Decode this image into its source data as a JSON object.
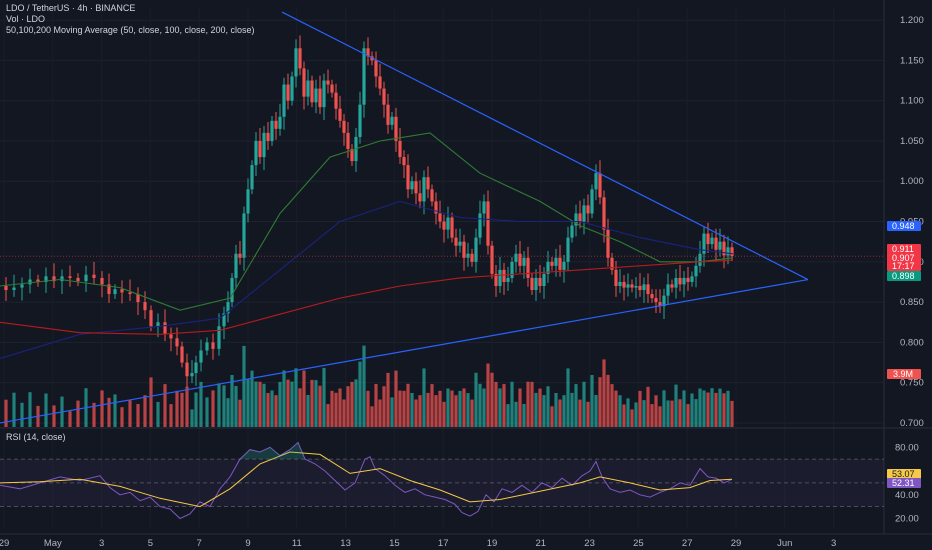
{
  "header": {
    "title": "LDO / TetherUS · 4h · BINANCE",
    "volume_label": "Vol · LDO",
    "ma_label": "50,100,200 Moving Average (50, close, 100, close, 200, close)",
    "rsi_label": "RSI (14, close)"
  },
  "chart_data": [
    {
      "type": "candlestick",
      "title": "LDO / TetherUS · 4h · BINANCE",
      "x_ticks": [
        "29",
        "May",
        "3",
        "5",
        "7",
        "9",
        "11",
        "13",
        "15",
        "17",
        "19",
        "21",
        "23",
        "25",
        "27",
        "29",
        "Jun",
        "3"
      ],
      "y_ticks": [
        "1.200",
        "1.150",
        "1.100",
        "1.050",
        "1.000",
        "0.950",
        "0.900",
        "0.850",
        "0.800",
        "0.750",
        "0.700"
      ],
      "ylim": [
        0.695,
        1.215
      ],
      "grid": true,
      "price_tags": [
        {
          "label": "0.948",
          "color": "#2962ff"
        },
        {
          "label": "0.911",
          "color": "#f23645"
        },
        {
          "label": "0.907",
          "color": "#f23645"
        },
        {
          "label": "17:17",
          "color": "#f23645"
        },
        {
          "label": "0.898",
          "color": "#089981"
        }
      ],
      "close_path": [
        [
          0,
          0.87
        ],
        [
          8,
          0.865
        ],
        [
          16,
          0.868
        ],
        [
          24,
          0.872
        ],
        [
          32,
          0.878
        ],
        [
          40,
          0.875
        ],
        [
          48,
          0.882
        ],
        [
          56,
          0.876
        ],
        [
          64,
          0.882
        ],
        [
          72,
          0.88
        ],
        [
          80,
          0.876
        ],
        [
          88,
          0.884
        ],
        [
          96,
          0.88
        ],
        [
          104,
          0.872
        ],
        [
          110,
          0.86
        ],
        [
          116,
          0.866
        ],
        [
          124,
          0.862
        ],
        [
          132,
          0.86
        ],
        [
          140,
          0.85
        ],
        [
          146,
          0.84
        ],
        [
          152,
          0.82
        ],
        [
          160,
          0.825
        ],
        [
          166,
          0.81
        ],
        [
          172,
          0.805
        ],
        [
          178,
          0.795
        ],
        [
          182,
          0.775
        ],
        [
          188,
          0.758
        ],
        [
          192,
          0.762
        ],
        [
          196,
          0.775
        ],
        [
          202,
          0.79
        ],
        [
          208,
          0.8
        ],
        [
          214,
          0.792
        ],
        [
          220,
          0.82
        ],
        [
          224,
          0.836
        ],
        [
          228,
          0.85
        ],
        [
          232,
          0.88
        ],
        [
          236,
          0.91
        ],
        [
          240,
          0.905
        ],
        [
          244,
          0.96
        ],
        [
          248,
          0.99
        ],
        [
          252,
          1.02
        ],
        [
          256,
          1.05
        ],
        [
          260,
          1.03
        ],
        [
          264,
          1.06
        ],
        [
          268,
          1.05
        ],
        [
          272,
          1.075
        ],
        [
          276,
          1.065
        ],
        [
          280,
          1.08
        ],
        [
          284,
          1.12
        ],
        [
          288,
          1.1
        ],
        [
          292,
          1.13
        ],
        [
          296,
          1.165
        ],
        [
          300,
          1.14
        ],
        [
          304,
          1.105
        ],
        [
          308,
          1.125
        ],
        [
          312,
          1.098
        ],
        [
          316,
          1.115
        ],
        [
          320,
          1.092
        ],
        [
          324,
          1.125
        ],
        [
          328,
          1.12
        ],
        [
          332,
          1.11
        ],
        [
          336,
          1.09
        ],
        [
          340,
          1.075
        ],
        [
          344,
          1.06
        ],
        [
          348,
          1.04
        ],
        [
          352,
          1.025
        ],
        [
          356,
          1.055
        ],
        [
          360,
          1.095
        ],
        [
          364,
          1.165
        ],
        [
          368,
          1.155
        ],
        [
          372,
          1.15
        ],
        [
          376,
          1.13
        ],
        [
          380,
          1.115
        ],
        [
          384,
          1.095
        ],
        [
          388,
          1.07
        ],
        [
          392,
          1.08
        ],
        [
          396,
          1.05
        ],
        [
          400,
          1.03
        ],
        [
          404,
          1.02
        ],
        [
          408,
          0.99
        ],
        [
          412,
          1.0
        ],
        [
          416,
          0.985
        ],
        [
          420,
          0.975
        ],
        [
          424,
          1.005
        ],
        [
          428,
          0.99
        ],
        [
          432,
          0.975
        ],
        [
          436,
          0.96
        ],
        [
          440,
          0.95
        ],
        [
          444,
          0.94
        ],
        [
          448,
          0.955
        ],
        [
          452,
          0.93
        ],
        [
          456,
          0.92
        ],
        [
          460,
          0.925
        ],
        [
          464,
          0.905
        ],
        [
          468,
          0.91
        ],
        [
          472,
          0.9
        ],
        [
          476,
          0.93
        ],
        [
          480,
          0.96
        ],
        [
          484,
          0.975
        ],
        [
          488,
          0.92
        ],
        [
          492,
          0.885
        ],
        [
          496,
          0.87
        ],
        [
          500,
          0.89
        ],
        [
          504,
          0.875
        ],
        [
          508,
          0.88
        ],
        [
          512,
          0.9
        ],
        [
          516,
          0.91
        ],
        [
          520,
          0.895
        ],
        [
          524,
          0.905
        ],
        [
          528,
          0.88
        ],
        [
          532,
          0.865
        ],
        [
          536,
          0.88
        ],
        [
          540,
          0.87
        ],
        [
          544,
          0.885
        ],
        [
          548,
          0.9
        ],
        [
          552,
          0.895
        ],
        [
          556,
          0.905
        ],
        [
          560,
          0.89
        ],
        [
          564,
          0.9
        ],
        [
          568,
          0.93
        ],
        [
          572,
          0.945
        ],
        [
          576,
          0.96
        ],
        [
          580,
          0.95
        ],
        [
          584,
          0.97
        ],
        [
          588,
          0.96
        ],
        [
          592,
          0.99
        ],
        [
          596,
          1.01
        ],
        [
          600,
          0.98
        ],
        [
          604,
          0.94
        ],
        [
          608,
          0.905
        ],
        [
          612,
          0.89
        ],
        [
          616,
          0.87
        ],
        [
          620,
          0.875
        ],
        [
          624,
          0.868
        ],
        [
          628,
          0.872
        ],
        [
          632,
          0.868
        ],
        [
          636,
          0.87
        ],
        [
          640,
          0.865
        ],
        [
          644,
          0.872
        ],
        [
          648,
          0.86
        ],
        [
          652,
          0.855
        ],
        [
          656,
          0.85
        ],
        [
          660,
          0.845
        ],
        [
          664,
          0.858
        ],
        [
          668,
          0.872
        ],
        [
          672,
          0.868
        ],
        [
          676,
          0.88
        ],
        [
          680,
          0.872
        ],
        [
          684,
          0.88
        ],
        [
          688,
          0.875
        ],
        [
          692,
          0.882
        ],
        [
          696,
          0.895
        ],
        [
          700,
          0.91
        ],
        [
          704,
          0.935
        ],
        [
          708,
          0.922
        ],
        [
          712,
          0.93
        ],
        [
          716,
          0.915
        ],
        [
          720,
          0.925
        ],
        [
          724,
          0.908
        ],
        [
          728,
          0.918
        ],
        [
          732,
          0.907
        ]
      ],
      "moving_averages": [
        {
          "length": 50,
          "color": "#2e7d32",
          "points": [
            [
              0,
              0.87
            ],
            [
              60,
              0.878
            ],
            [
              120,
              0.868
            ],
            [
              180,
              0.84
            ],
            [
              230,
              0.855
            ],
            [
              280,
              0.96
            ],
            [
              330,
              1.03
            ],
            [
              380,
              1.05
            ],
            [
              430,
              1.06
            ],
            [
              480,
              1.01
            ],
            [
              540,
              0.975
            ],
            [
              580,
              0.945
            ],
            [
              620,
              0.925
            ],
            [
              660,
              0.9
            ],
            [
              700,
              0.9
            ],
            [
              733,
              0.905
            ]
          ]
        },
        {
          "length": 100,
          "color": "#1a237e",
          "points": [
            [
              0,
              0.78
            ],
            [
              80,
              0.81
            ],
            [
              160,
              0.82
            ],
            [
              220,
              0.83
            ],
            [
              280,
              0.89
            ],
            [
              340,
              0.95
            ],
            [
              400,
              0.975
            ],
            [
              460,
              0.955
            ],
            [
              520,
              0.95
            ],
            [
              580,
              0.95
            ],
            [
              640,
              0.93
            ],
            [
              700,
              0.915
            ],
            [
              733,
              0.91
            ]
          ]
        },
        {
          "length": 200,
          "color": "#b71c1c",
          "points": [
            [
              0,
              0.825
            ],
            [
              80,
              0.812
            ],
            [
              160,
              0.81
            ],
            [
              220,
              0.815
            ],
            [
              280,
              0.835
            ],
            [
              340,
              0.855
            ],
            [
              400,
              0.87
            ],
            [
              460,
              0.88
            ],
            [
              520,
              0.885
            ],
            [
              580,
              0.89
            ],
            [
              640,
              0.895
            ],
            [
              700,
              0.9
            ],
            [
              733,
              0.902
            ]
          ]
        }
      ],
      "trendlines": [
        {
          "name": "upper-trendline",
          "from": [
            282,
            1.21
          ],
          "to": [
            808,
            0.878
          ],
          "color": "#2962ff"
        },
        {
          "name": "lower-trendline",
          "from": [
            0,
            0.7
          ],
          "to": [
            808,
            0.878
          ],
          "color": "#2962ff"
        }
      ]
    },
    {
      "type": "bar",
      "title": "Vol · LDO",
      "last_value_label": "3.9M",
      "bar_colors": {
        "up": "#26a69a",
        "down": "#ef5350"
      }
    },
    {
      "type": "line",
      "title": "RSI (14, close)",
      "y_ticks": [
        "80.00",
        "40.00",
        "20.00"
      ],
      "ylim": [
        12,
        92
      ],
      "bands": [
        30,
        70
      ],
      "labels": [
        {
          "label": "53.07",
          "color": "#f7c948"
        },
        {
          "label": "52.31",
          "color": "#7e57c2"
        }
      ],
      "rsi_color": "#7e57c2",
      "ma_color": "#f7c948",
      "rsi_path": [
        [
          0,
          48
        ],
        [
          20,
          45
        ],
        [
          40,
          50
        ],
        [
          60,
          55
        ],
        [
          80,
          52
        ],
        [
          100,
          56
        ],
        [
          110,
          46
        ],
        [
          120,
          40
        ],
        [
          130,
          42
        ],
        [
          140,
          35
        ],
        [
          150,
          38
        ],
        [
          160,
          30
        ],
        [
          170,
          28
        ],
        [
          180,
          20
        ],
        [
          190,
          24
        ],
        [
          200,
          34
        ],
        [
          210,
          30
        ],
        [
          220,
          45
        ],
        [
          230,
          55
        ],
        [
          240,
          70
        ],
        [
          250,
          78
        ],
        [
          260,
          76
        ],
        [
          270,
          80
        ],
        [
          280,
          73
        ],
        [
          290,
          78
        ],
        [
          298,
          84
        ],
        [
          305,
          70
        ],
        [
          315,
          66
        ],
        [
          325,
          60
        ],
        [
          335,
          52
        ],
        [
          345,
          44
        ],
        [
          355,
          50
        ],
        [
          365,
          70
        ],
        [
          370,
          72
        ],
        [
          375,
          62
        ],
        [
          385,
          56
        ],
        [
          395,
          48
        ],
        [
          405,
          42
        ],
        [
          415,
          45
        ],
        [
          425,
          40
        ],
        [
          435,
          38
        ],
        [
          445,
          36
        ],
        [
          455,
          32
        ],
        [
          462,
          25
        ],
        [
          470,
          22
        ],
        [
          478,
          26
        ],
        [
          486,
          40
        ],
        [
          494,
          34
        ],
        [
          502,
          45
        ],
        [
          512,
          42
        ],
        [
          522,
          48
        ],
        [
          532,
          42
        ],
        [
          542,
          50
        ],
        [
          552,
          46
        ],
        [
          562,
          54
        ],
        [
          572,
          48
        ],
        [
          582,
          56
        ],
        [
          590,
          60
        ],
        [
          596,
          68
        ],
        [
          602,
          55
        ],
        [
          610,
          45
        ],
        [
          620,
          42
        ],
        [
          630,
          44
        ],
        [
          640,
          40
        ],
        [
          650,
          38
        ],
        [
          660,
          42
        ],
        [
          670,
          45
        ],
        [
          680,
          50
        ],
        [
          690,
          48
        ],
        [
          700,
          62
        ],
        [
          708,
          55
        ],
        [
          716,
          54
        ],
        [
          724,
          50
        ],
        [
          732,
          53
        ]
      ],
      "rsi_ma_path": [
        [
          0,
          50
        ],
        [
          40,
          51
        ],
        [
          80,
          53
        ],
        [
          120,
          47
        ],
        [
          160,
          37
        ],
        [
          200,
          30
        ],
        [
          230,
          45
        ],
        [
          260,
          66
        ],
        [
          290,
          76
        ],
        [
          320,
          74
        ],
        [
          350,
          58
        ],
        [
          380,
          62
        ],
        [
          410,
          52
        ],
        [
          440,
          44
        ],
        [
          470,
          34
        ],
        [
          500,
          36
        ],
        [
          540,
          43
        ],
        [
          580,
          50
        ],
        [
          600,
          55
        ],
        [
          630,
          50
        ],
        [
          660,
          44
        ],
        [
          690,
          46
        ],
        [
          710,
          52
        ],
        [
          732,
          53
        ]
      ]
    }
  ]
}
